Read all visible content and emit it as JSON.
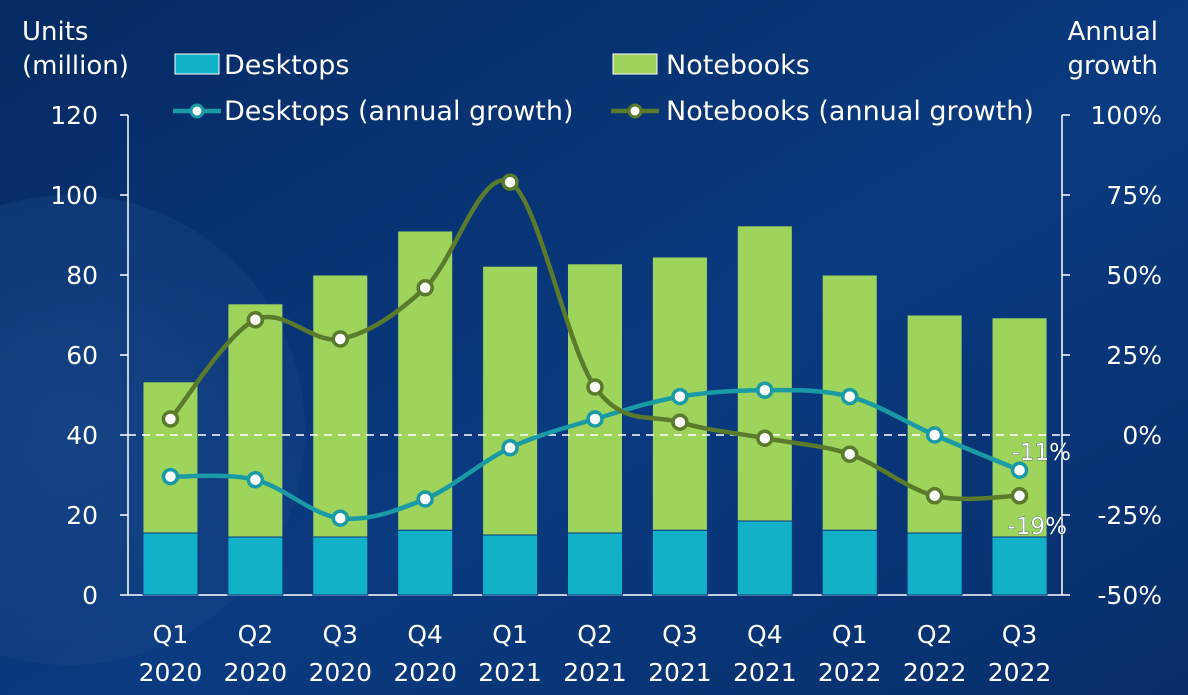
{
  "chart_data": {
    "type": "bar",
    "subtype": "stacked bar with dual-axis growth lines",
    "categories": [
      [
        "Q1",
        "2020"
      ],
      [
        "Q2",
        "2020"
      ],
      [
        "Q3",
        "2020"
      ],
      [
        "Q4",
        "2020"
      ],
      [
        "Q1",
        "2021"
      ],
      [
        "Q2",
        "2021"
      ],
      [
        "Q3",
        "2021"
      ],
      [
        "Q4",
        "2021"
      ],
      [
        "Q1",
        "2022"
      ],
      [
        "Q2",
        "2022"
      ],
      [
        "Q3",
        "2022"
      ]
    ],
    "y_left": {
      "label_lines": [
        "Units",
        "(million)"
      ],
      "ylim": [
        0,
        120
      ],
      "ticks": [
        "0",
        "20",
        "40",
        "60",
        "80",
        "100",
        "120"
      ]
    },
    "y_right": {
      "label_lines": [
        "Annual",
        "growth"
      ],
      "ylim": [
        -50,
        100
      ],
      "ticks": [
        "-50%",
        "-25%",
        "0%",
        "25%",
        "50%",
        "75%",
        "100%"
      ]
    },
    "series": [
      {
        "name": "Desktops",
        "kind": "bar",
        "stack": 0,
        "axis": "left",
        "color": "#12b1c7",
        "values": [
          15.5,
          14.5,
          14.5,
          16.2,
          15.0,
          15.5,
          16.2,
          18.5,
          16.2,
          15.5,
          14.5
        ]
      },
      {
        "name": "Notebooks",
        "kind": "bar",
        "stack": 1,
        "axis": "left",
        "color": "#9ed35c",
        "values": [
          37.8,
          58.3,
          65.5,
          74.8,
          67.2,
          67.3,
          68.3,
          73.8,
          63.8,
          54.5,
          54.8
        ]
      },
      {
        "name": "Desktops (annual growth)",
        "kind": "line",
        "axis": "right",
        "color": "#1a9aa5",
        "values": [
          -13,
          -14,
          -26,
          -20,
          -4,
          5,
          12,
          14,
          12,
          0,
          -11
        ]
      },
      {
        "name": "Notebooks (annual growth)",
        "kind": "line",
        "axis": "right",
        "color": "#5a7a2c",
        "values": [
          5,
          36,
          30,
          46,
          79,
          15,
          4,
          -1,
          -6,
          -19,
          -19
        ]
      }
    ],
    "annotations": [
      {
        "text": "-11%",
        "series": "Desktops (annual growth)",
        "category_index": 10
      },
      {
        "text": "-19%",
        "series": "Notebooks (annual growth)",
        "category_index": 10
      }
    ],
    "reference_line": {
      "axis": "right",
      "value": 0,
      "style": "dashed"
    },
    "grid": false,
    "legend": "top"
  }
}
